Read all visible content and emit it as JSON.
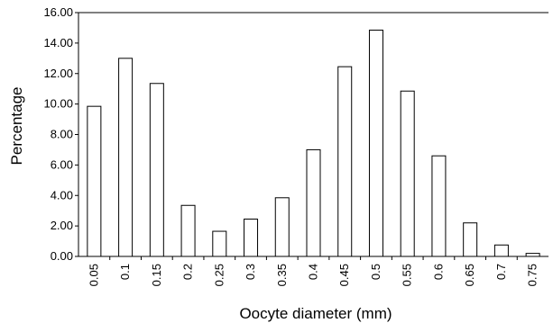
{
  "chart_data": {
    "type": "bar",
    "title": "",
    "xlabel": "Oocyte diameter (mm)",
    "ylabel": "Percentage",
    "ylim": [
      0,
      16
    ],
    "yticks": [
      "0.00",
      "2.00",
      "4.00",
      "6.00",
      "8.00",
      "10.00",
      "12.00",
      "14.00",
      "16.00"
    ],
    "categories": [
      "0.05",
      "0.1",
      "0.15",
      "0.2",
      "0.25",
      "0.3",
      "0.35",
      "0.4",
      "0.45",
      "0.5",
      "0.55",
      "0.6",
      "0.65",
      "0.7",
      "0.75"
    ],
    "values": [
      9.85,
      13.0,
      11.35,
      3.35,
      1.65,
      2.45,
      3.85,
      7.0,
      12.45,
      14.85,
      10.85,
      6.6,
      2.2,
      0.75,
      0.2
    ],
    "grid": false,
    "legend": "none",
    "colors": {
      "bar_fill": "#ffffff",
      "bar_stroke": "#000000",
      "axis": "#000000"
    }
  }
}
